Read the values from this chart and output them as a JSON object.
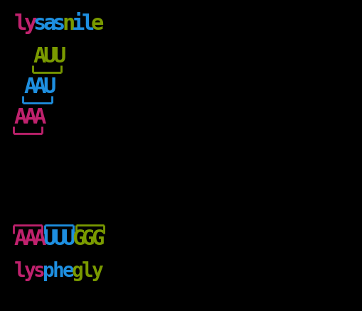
{
  "bg_color": "#000000",
  "pink": "#c0226e",
  "blue": "#1e8fe0",
  "green": "#7a9a00",
  "font_size_large": 22,
  "font_size_small": 20,
  "font_family": "monospace",
  "top_line": [
    {
      "text": "l",
      "color": "#c0226e"
    },
    {
      "text": "y",
      "color": "#c0226e"
    },
    {
      "text": "s",
      "color": "#1e8fe0"
    },
    {
      "text": "a",
      "color": "#1e8fe0"
    },
    {
      "text": "s",
      "color": "#1e8fe0"
    },
    {
      "text": "n",
      "color": "#7a9a00"
    },
    {
      "text": "i",
      "color": "#1e8fe0"
    },
    {
      "text": "l",
      "color": "#1e8fe0"
    },
    {
      "text": "e",
      "color": "#7a9a00"
    }
  ],
  "codon_AUU": {
    "text_chars": [
      {
        "text": "A",
        "color": "#7a9a00"
      },
      {
        "text": "U",
        "color": "#7a9a00"
      },
      {
        "text": "U",
        "color": "#7a9a00"
      }
    ],
    "bracket_color": "#7a9a00"
  },
  "codon_AAU": {
    "text_chars": [
      {
        "text": "A",
        "color": "#1e8fe0"
      },
      {
        "text": "A",
        "color": "#1e8fe0"
      },
      {
        "text": "U",
        "color": "#1e8fe0"
      }
    ],
    "bracket_color": "#1e8fe0"
  },
  "codon_AAA": {
    "text_chars": [
      {
        "text": "A",
        "color": "#c0226e"
      },
      {
        "text": "A",
        "color": "#c0226e"
      },
      {
        "text": "A",
        "color": "#c0226e"
      }
    ],
    "bracket_color": "#c0226e"
  },
  "bottom_seq": [
    {
      "text": "A",
      "color": "#c0226e"
    },
    {
      "text": "A",
      "color": "#c0226e"
    },
    {
      "text": "A",
      "color": "#c0226e"
    },
    {
      "text": "U",
      "color": "#1e8fe0"
    },
    {
      "text": "U",
      "color": "#1e8fe0"
    },
    {
      "text": "U",
      "color": "#1e8fe0"
    },
    {
      "text": "G",
      "color": "#7a9a00"
    },
    {
      "text": "G",
      "color": "#7a9a00"
    },
    {
      "text": "G",
      "color": "#7a9a00"
    }
  ],
  "bottom_aa": [
    {
      "text": "l",
      "color": "#c0226e"
    },
    {
      "text": "y",
      "color": "#c0226e"
    },
    {
      "text": "s",
      "color": "#c0226e"
    },
    {
      "text": "p",
      "color": "#1e8fe0"
    },
    {
      "text": "h",
      "color": "#1e8fe0"
    },
    {
      "text": "e",
      "color": "#1e8fe0"
    },
    {
      "text": "g",
      "color": "#7a9a00"
    },
    {
      "text": "l",
      "color": "#7a9a00"
    },
    {
      "text": "y",
      "color": "#7a9a00"
    }
  ]
}
